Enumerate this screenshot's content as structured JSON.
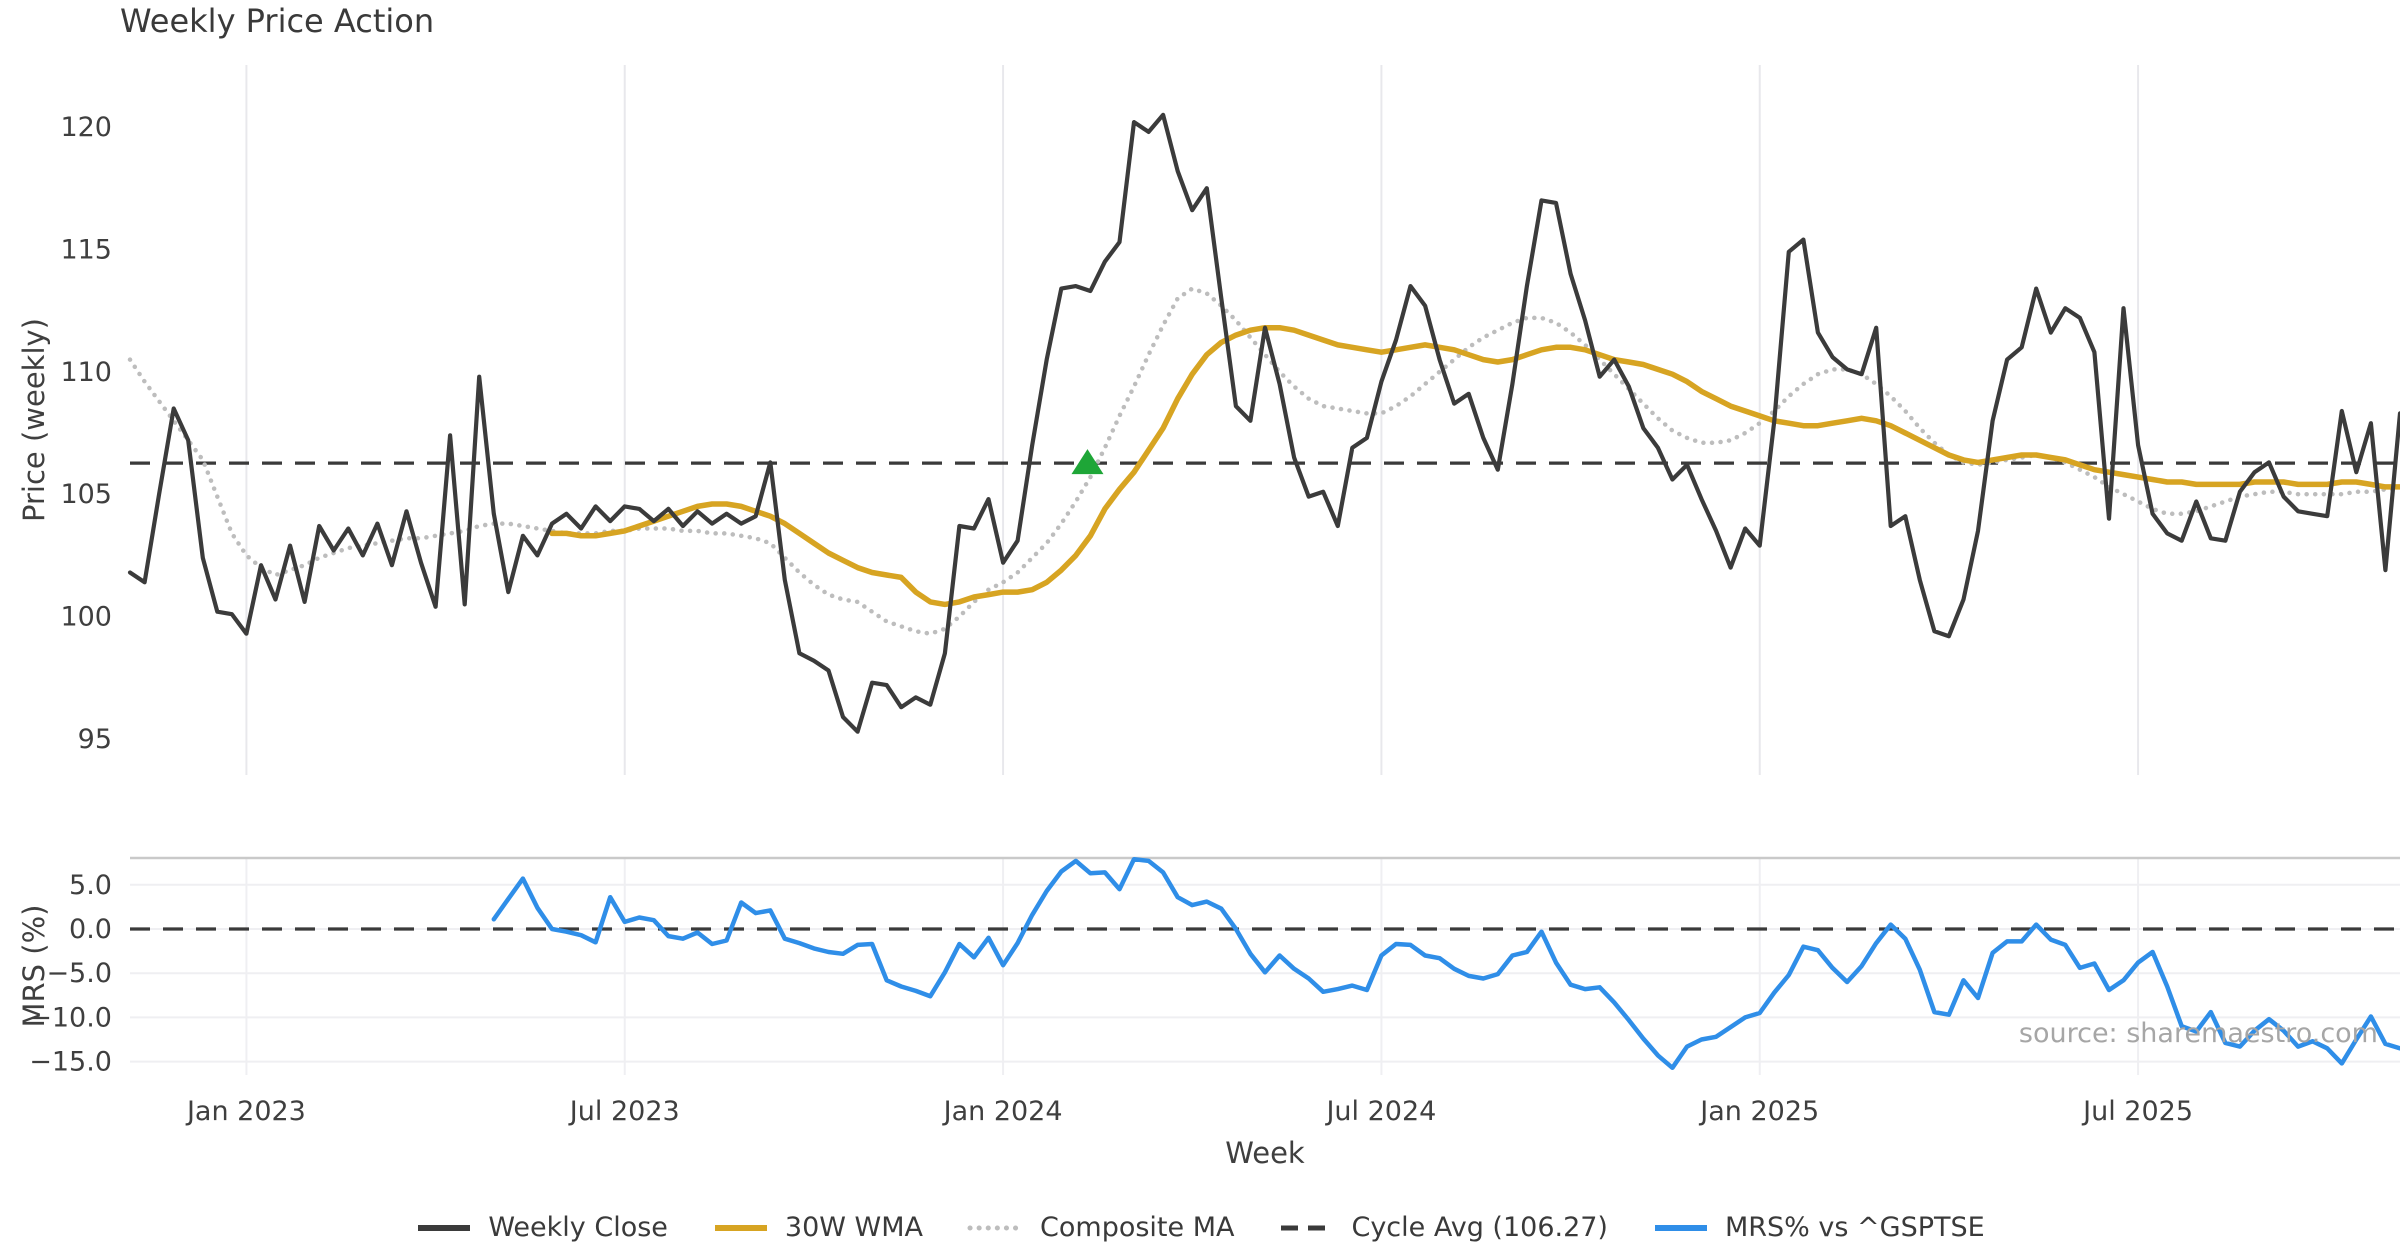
{
  "title": "Weekly Price Action",
  "source_note": "source: sharemaestro.com",
  "chart_data": {
    "type": "line",
    "x_axis": {
      "label": "Week",
      "ticks": [
        {
          "week": 8,
          "label": "Jan 2023"
        },
        {
          "week": 34,
          "label": "Jul 2023"
        },
        {
          "week": 60,
          "label": "Jan 2024"
        },
        {
          "week": 86,
          "label": "Jul 2024"
        },
        {
          "week": 112,
          "label": "Jan 2025"
        },
        {
          "week": 138,
          "label": "Jul 2025"
        }
      ],
      "total_weeks": 156
    },
    "panels": [
      {
        "name": "price",
        "ylabel": "Price (weekly)",
        "ylim": [
          93.5,
          122.5
        ],
        "yticks": [
          {
            "v": 95,
            "label": "95"
          },
          {
            "v": 100,
            "label": "100"
          },
          {
            "v": 105,
            "label": "105"
          },
          {
            "v": 110,
            "label": "110"
          },
          {
            "v": 115,
            "label": "115"
          },
          {
            "v": 120,
            "label": "120"
          }
        ],
        "cycle_avg": 106.27,
        "signal_marker": {
          "week": 65.8,
          "value": 106.27,
          "shape": "triangle-up",
          "color": "#1ea637"
        },
        "series": [
          {
            "label": "Composite MA",
            "color": "#bdbdbd",
            "style": "dotted",
            "lw": 4.5,
            "start_week": 0,
            "values": [
              110.5,
              109.6,
              108.8,
              108.0,
              107.2,
              106.4,
              104.9,
              103.4,
              102.5,
              102.0,
              101.7,
              101.9,
              102.1,
              102.4,
              102.6,
              102.8,
              102.9,
              103.0,
              103.1,
              103.2,
              103.2,
              103.3,
              103.4,
              103.5,
              103.7,
              103.8,
              103.8,
              103.7,
              103.6,
              103.5,
              103.4,
              103.4,
              103.4,
              103.5,
              103.5,
              103.6,
              103.6,
              103.6,
              103.5,
              103.5,
              103.4,
              103.4,
              103.3,
              103.2,
              103.0,
              102.4,
              101.8,
              101.3,
              100.9,
              100.7,
              100.6,
              100.2,
              99.8,
              99.6,
              99.4,
              99.3,
              99.5,
              100.0,
              100.6,
              101.1,
              101.4,
              101.8,
              102.4,
              103.0,
              103.8,
              104.7,
              105.7,
              106.9,
              108.2,
              109.4,
              110.7,
              111.9,
              113.0,
              113.4,
              113.2,
              112.7,
              112.1,
              111.4,
              110.7,
              110.0,
              109.4,
              108.9,
              108.6,
              108.5,
              108.4,
              108.3,
              108.3,
              108.6,
              109.0,
              109.5,
              110.0,
              110.5,
              111.0,
              111.4,
              111.7,
              112.0,
              112.2,
              112.2,
              112.0,
              111.6,
              111.1,
              110.5,
              109.9,
              109.3,
              108.7,
              108.1,
              107.6,
              107.3,
              107.1,
              107.1,
              107.2,
              107.5,
              107.9,
              108.4,
              109.0,
              109.5,
              109.9,
              110.1,
              110.1,
              109.9,
              109.5,
              109.0,
              108.4,
              107.7,
              107.1,
              106.6,
              106.3,
              106.2,
              106.3,
              106.4,
              106.5,
              106.6,
              106.5,
              106.3,
              106.0,
              105.7,
              105.3,
              105.0,
              104.7,
              104.4,
              104.2,
              104.2,
              104.3,
              104.5,
              104.7,
              104.9,
              105.0,
              105.1,
              105.1,
              105.0,
              105.0,
              105.0,
              105.0,
              105.1,
              105.1,
              105.2,
              105.2
            ]
          },
          {
            "label": "30W WMA",
            "color": "#d7a422",
            "style": "solid",
            "lw": 5.5,
            "start_week": 29,
            "values": [
              103.4,
              103.4,
              103.3,
              103.3,
              103.4,
              103.5,
              103.7,
              103.9,
              104.1,
              104.3,
              104.5,
              104.6,
              104.6,
              104.5,
              104.3,
              104.1,
              103.8,
              103.4,
              103.0,
              102.6,
              102.3,
              102.0,
              101.8,
              101.7,
              101.6,
              101.0,
              100.6,
              100.5,
              100.6,
              100.8,
              100.9,
              101.0,
              101.0,
              101.1,
              101.4,
              101.9,
              102.5,
              103.3,
              104.4,
              105.2,
              105.9,
              106.8,
              107.7,
              108.9,
              109.9,
              110.7,
              111.2,
              111.5,
              111.7,
              111.8,
              111.8,
              111.7,
              111.5,
              111.3,
              111.1,
              111.0,
              110.9,
              110.8,
              110.9,
              111.0,
              111.1,
              111.0,
              110.9,
              110.7,
              110.5,
              110.4,
              110.5,
              110.7,
              110.9,
              111.0,
              111.0,
              110.9,
              110.7,
              110.5,
              110.4,
              110.3,
              110.1,
              109.9,
              109.6,
              109.2,
              108.9,
              108.6,
              108.4,
              108.2,
              108.0,
              107.9,
              107.8,
              107.8,
              107.9,
              108.0,
              108.1,
              108.0,
              107.8,
              107.5,
              107.2,
              106.9,
              106.6,
              106.4,
              106.3,
              106.4,
              106.5,
              106.6,
              106.6,
              106.5,
              106.4,
              106.2,
              106.0,
              105.9,
              105.8,
              105.7,
              105.6,
              105.5,
              105.5,
              105.4,
              105.4,
              105.4,
              105.4,
              105.5,
              105.5,
              105.5,
              105.4,
              105.4,
              105.4,
              105.5,
              105.5,
              105.4,
              105.3,
              105.3
            ]
          },
          {
            "label": "Weekly Close",
            "color": "#3b3b3b",
            "style": "solid",
            "lw": 4.2,
            "start_week": 0,
            "values": [
              101.8,
              101.4,
              105.0,
              108.5,
              107.2,
              102.4,
              100.2,
              100.1,
              99.3,
              102.1,
              100.7,
              102.9,
              100.6,
              103.7,
              102.7,
              103.6,
              102.5,
              103.8,
              102.1,
              104.3,
              102.2,
              100.4,
              107.4,
              100.5,
              109.8,
              104.2,
              101.0,
              103.3,
              102.5,
              103.8,
              104.2,
              103.6,
              104.5,
              103.9,
              104.5,
              104.4,
              103.9,
              104.4,
              103.7,
              104.3,
              103.8,
              104.2,
              103.8,
              104.1,
              106.3,
              101.5,
              98.5,
              98.2,
              97.8,
              95.9,
              95.3,
              97.3,
              97.2,
              96.3,
              96.7,
              96.4,
              98.5,
              103.7,
              103.6,
              104.8,
              102.2,
              103.1,
              107.0,
              110.5,
              113.4,
              113.5,
              113.3,
              114.5,
              115.3,
              120.2,
              119.8,
              120.5,
              118.2,
              116.6,
              117.5,
              113.0,
              108.6,
              108.0,
              111.8,
              109.5,
              106.5,
              104.9,
              105.1,
              103.7,
              106.9,
              107.3,
              109.6,
              111.3,
              113.5,
              112.7,
              110.5,
              108.7,
              109.1,
              107.3,
              106.0,
              109.5,
              113.5,
              117.0,
              116.9,
              114.0,
              112.1,
              109.8,
              110.5,
              109.4,
              107.7,
              106.9,
              105.6,
              106.2,
              104.8,
              103.5,
              102.0,
              103.6,
              102.9,
              108.0,
              114.9,
              115.4,
              111.6,
              110.6,
              110.1,
              109.9,
              111.8,
              103.7,
              104.1,
              101.5,
              99.4,
              99.2,
              100.7,
              103.5,
              108.0,
              110.5,
              111.0,
              113.4,
              111.6,
              112.6,
              112.2,
              110.8,
              104.0,
              112.6,
              107.0,
              104.2,
              103.4,
              103.1,
              104.7,
              103.2,
              103.1,
              105.1,
              105.9,
              106.3,
              104.9,
              104.3,
              104.2,
              104.1,
              108.4,
              105.9,
              107.9,
              101.9,
              108.3
            ]
          }
        ]
      },
      {
        "name": "mrs",
        "ylabel": "MRS (%)",
        "ylim": [
          -16.5,
          8.0
        ],
        "ref_line": 0,
        "yticks": [
          {
            "v": 5,
            "label": "5.0"
          },
          {
            "v": 0,
            "label": "0.0"
          },
          {
            "v": -5,
            "label": "−5.0"
          },
          {
            "v": -10,
            "label": "−10.0"
          },
          {
            "v": -15,
            "label": "−15.0"
          }
        ],
        "series": [
          {
            "label": "MRS% vs ^GSPTSE",
            "color": "#2f8ee8",
            "style": "solid",
            "lw": 4.5,
            "start_week": 25,
            "values": [
              1.1,
              3.4,
              5.7,
              2.4,
              0.0,
              -0.3,
              -0.7,
              -1.5,
              3.6,
              0.8,
              1.3,
              1.0,
              -0.8,
              -1.1,
              -0.4,
              -1.7,
              -1.3,
              3.0,
              1.8,
              2.1,
              -1.1,
              -1.6,
              -2.2,
              -2.6,
              -2.8,
              -1.8,
              -1.7,
              -5.8,
              -6.5,
              -7.0,
              -7.6,
              -4.9,
              -1.7,
              -3.2,
              -1.0,
              -4.1,
              -1.6,
              1.6,
              4.3,
              6.5,
              7.7,
              6.3,
              6.4,
              4.5,
              7.9,
              7.7,
              6.4,
              3.6,
              2.7,
              3.1,
              2.3,
              0.0,
              -2.8,
              -4.9,
              -3.0,
              -4.5,
              -5.6,
              -7.1,
              -6.8,
              -6.4,
              -6.9,
              -3.0,
              -1.7,
              -1.8,
              -3.0,
              -3.3,
              -4.5,
              -5.3,
              -5.6,
              -5.1,
              -3.0,
              -2.6,
              -0.3,
              -3.8,
              -6.3,
              -6.8,
              -6.6,
              -8.3,
              -10.3,
              -12.4,
              -14.3,
              -15.7,
              -13.3,
              -12.5,
              -12.2,
              -11.1,
              -10.0,
              -9.5,
              -7.2,
              -5.2,
              -2.0,
              -2.4,
              -4.4,
              -6.0,
              -4.2,
              -1.6,
              0.5,
              -1.1,
              -4.6,
              -9.4,
              -9.7,
              -5.8,
              -7.8,
              -2.7,
              -1.4,
              -1.4,
              0.5,
              -1.2,
              -1.8,
              -4.4,
              -3.9,
              -6.9,
              -5.8,
              -3.8,
              -2.6,
              -6.5,
              -11.0,
              -11.6,
              -9.4,
              -12.9,
              -13.3,
              -11.5,
              -10.2,
              -11.5,
              -13.3,
              -12.7,
              -13.5,
              -15.2,
              -12.5,
              -9.9,
              -13.0,
              -13.5
            ]
          }
        ]
      }
    ],
    "legend": [
      {
        "label": "Weekly Close",
        "color": "#3b3b3b",
        "style": "solid"
      },
      {
        "label": "30W WMA",
        "color": "#d7a422",
        "style": "solid"
      },
      {
        "label": "Composite MA",
        "color": "#bdbdbd",
        "style": "dotted"
      },
      {
        "label": "Cycle Avg (106.27)",
        "color": "#3a3a3a",
        "style": "dashed"
      },
      {
        "label": "MRS% vs ^GSPTSE",
        "color": "#2f8ee8",
        "style": "solid"
      }
    ]
  }
}
